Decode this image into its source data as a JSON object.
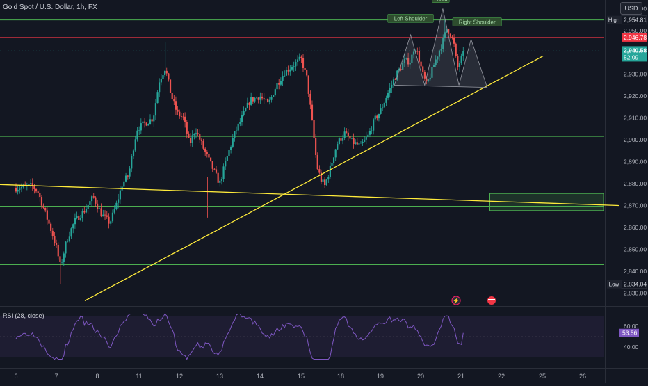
{
  "header": {
    "symbol": "Gold Spot / U.S. Dollar, 1h, FX",
    "currency": "USD"
  },
  "colors": {
    "background": "#131722",
    "up": "#26a69a",
    "down": "#ef5350",
    "level": "#4caf50",
    "resistance": "#f23645",
    "trendline": "#ffeb3b",
    "rsi": "#7e57c2"
  },
  "chart_data": {
    "type": "candlestick",
    "x_ticks": [
      "6",
      "7",
      "8",
      "11",
      "12",
      "13",
      "14",
      "15",
      "18",
      "19",
      "20",
      "21",
      "22",
      "25",
      "26"
    ],
    "y_ticks": [
      "2,960.00",
      "2,950.00",
      "2,930.00",
      "2,920.00",
      "2,910.00",
      "2,900.00",
      "2,890.00",
      "2,880.00",
      "2,870.00",
      "2,860.00",
      "2,850.00",
      "2,840.00",
      "2,830.00"
    ],
    "ylim": [
      2826,
      2962
    ],
    "price_labels": [
      {
        "tag": "High",
        "value": "2,954.81",
        "price": 2954.81
      },
      {
        "value": "2,946.78",
        "price": 2946.78
      },
      {
        "value": "2,940.58",
        "price": 2940.58,
        "extra": "52:09"
      },
      {
        "tag": "Low",
        "value": "2,834.04",
        "price": 2834.04
      }
    ],
    "horizontal_levels": [
      2954.81,
      2946.78,
      2901.6,
      2869.7,
      2843.0
    ],
    "current_price": 2940.58,
    "demand_zone": {
      "x_start": "21.75",
      "x_end": "26",
      "low": 2867.7,
      "high": 2875.5
    },
    "annotations": [
      "Left Shoulder",
      "Head",
      "Right Shoulder"
    ],
    "path_anchors": [
      {
        "x": 0.0,
        "y": 2878
      },
      {
        "x": 0.4,
        "y": 2879
      },
      {
        "x": 0.55,
        "y": 2876
      },
      {
        "x": 0.7,
        "y": 2868
      },
      {
        "x": 0.85,
        "y": 2860
      },
      {
        "x": 1.0,
        "y": 2851
      },
      {
        "x": 1.1,
        "y": 2842
      },
      {
        "x": 1.25,
        "y": 2854
      },
      {
        "x": 1.45,
        "y": 2863
      },
      {
        "x": 1.7,
        "y": 2868
      },
      {
        "x": 1.9,
        "y": 2874
      },
      {
        "x": 2.1,
        "y": 2866
      },
      {
        "x": 2.3,
        "y": 2862
      },
      {
        "x": 2.45,
        "y": 2870
      },
      {
        "x": 2.6,
        "y": 2880
      },
      {
        "x": 2.75,
        "y": 2884
      },
      {
        "x": 2.85,
        "y": 2895
      },
      {
        "x": 2.95,
        "y": 2905
      },
      {
        "x": 3.1,
        "y": 2907
      },
      {
        "x": 3.35,
        "y": 2910
      },
      {
        "x": 3.5,
        "y": 2927
      },
      {
        "x": 3.65,
        "y": 2933
      },
      {
        "x": 3.8,
        "y": 2920
      },
      {
        "x": 3.95,
        "y": 2912
      },
      {
        "x": 4.1,
        "y": 2910
      },
      {
        "x": 4.25,
        "y": 2898
      },
      {
        "x": 4.4,
        "y": 2905
      },
      {
        "x": 4.6,
        "y": 2896
      },
      {
        "x": 4.75,
        "y": 2890
      },
      {
        "x": 4.9,
        "y": 2884
      },
      {
        "x": 5.0,
        "y": 2880
      },
      {
        "x": 5.15,
        "y": 2890
      },
      {
        "x": 5.35,
        "y": 2902
      },
      {
        "x": 5.55,
        "y": 2910
      },
      {
        "x": 5.75,
        "y": 2918
      },
      {
        "x": 6.0,
        "y": 2920
      },
      {
        "x": 6.2,
        "y": 2916
      },
      {
        "x": 6.4,
        "y": 2925
      },
      {
        "x": 6.6,
        "y": 2931
      },
      {
        "x": 6.8,
        "y": 2934
      },
      {
        "x": 7.0,
        "y": 2937
      },
      {
        "x": 7.15,
        "y": 2928
      },
      {
        "x": 7.3,
        "y": 2905
      },
      {
        "x": 7.4,
        "y": 2888
      },
      {
        "x": 7.5,
        "y": 2882
      },
      {
        "x": 7.6,
        "y": 2879
      },
      {
        "x": 7.75,
        "y": 2888
      },
      {
        "x": 7.9,
        "y": 2898
      },
      {
        "x": 8.1,
        "y": 2903
      },
      {
        "x": 8.3,
        "y": 2899
      },
      {
        "x": 8.5,
        "y": 2897
      },
      {
        "x": 8.7,
        "y": 2902
      },
      {
        "x": 8.85,
        "y": 2909
      },
      {
        "x": 9.0,
        "y": 2913
      },
      {
        "x": 9.2,
        "y": 2922
      },
      {
        "x": 9.4,
        "y": 2930
      },
      {
        "x": 9.6,
        "y": 2936
      },
      {
        "x": 9.75,
        "y": 2936
      },
      {
        "x": 9.85,
        "y": 2943
      },
      {
        "x": 9.95,
        "y": 2938
      },
      {
        "x": 10.05,
        "y": 2930
      },
      {
        "x": 10.15,
        "y": 2925
      },
      {
        "x": 10.25,
        "y": 2930
      },
      {
        "x": 10.4,
        "y": 2938
      },
      {
        "x": 10.55,
        "y": 2945
      },
      {
        "x": 10.65,
        "y": 2951
      },
      {
        "x": 10.75,
        "y": 2948
      },
      {
        "x": 10.85,
        "y": 2942
      },
      {
        "x": 10.9,
        "y": 2932
      },
      {
        "x": 11.0,
        "y": 2937
      },
      {
        "x": 11.1,
        "y": 2940.58
      }
    ],
    "rsi": {
      "label": "RSI (28, close)",
      "value": "53.56",
      "current": 53.56,
      "ticks": [
        "60.00",
        "40.00"
      ],
      "upper_band": 70,
      "lower_band": 30,
      "ylim": [
        25,
        75
      ]
    }
  }
}
